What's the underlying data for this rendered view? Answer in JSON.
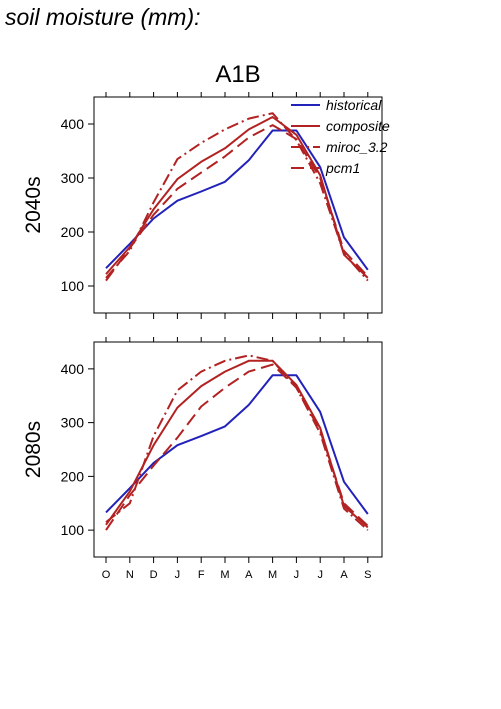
{
  "page": {
    "title": "soil moisture (mm):"
  },
  "chart_data": {
    "type": "line",
    "title": "A1B",
    "categories": [
      "O",
      "N",
      "D",
      "J",
      "F",
      "M",
      "A",
      "M",
      "J",
      "J",
      "A",
      "S"
    ],
    "ylim": [
      50,
      450
    ],
    "yticks": [
      100,
      200,
      300,
      400
    ],
    "grid": false,
    "legend": {
      "placement": "top-right",
      "entries": [
        "historical",
        "composite",
        "miroc_3.2",
        "pcm1"
      ]
    },
    "series_styles": [
      {
        "name": "historical",
        "color": "#2222bb",
        "dash": "solid"
      },
      {
        "name": "composite",
        "color": "#b22222",
        "dash": "solid"
      },
      {
        "name": "miroc_3.2",
        "color": "#b22222",
        "dash": "dashdot"
      },
      {
        "name": "pcm1",
        "color": "#b22222",
        "dash": "dashed"
      }
    ],
    "panels": [
      {
        "label": "2040s",
        "series": [
          {
            "name": "historical",
            "values": [
              133,
              178,
              225,
              258,
              275,
              293,
              333,
              388,
              388,
              320,
              190,
              130
            ]
          },
          {
            "name": "composite",
            "values": [
              122,
              172,
              242,
              298,
              330,
              355,
              390,
              413,
              380,
              305,
              158,
              115
            ]
          },
          {
            "name": "miroc_3.2",
            "values": [
              115,
              165,
              255,
              335,
              365,
              390,
              410,
              420,
              370,
              290,
              160,
              110
            ]
          },
          {
            "name": "pcm1",
            "values": [
              110,
              170,
              232,
              280,
              310,
              340,
              375,
              398,
              372,
              300,
              165,
              118
            ]
          }
        ]
      },
      {
        "label": "2080s",
        "series": [
          {
            "name": "historical",
            "values": [
              133,
              178,
              225,
              258,
              275,
              293,
              333,
              388,
              388,
              320,
              190,
              130
            ]
          },
          {
            "name": "composite",
            "values": [
              110,
              172,
              258,
              328,
              368,
              395,
              415,
              415,
              370,
              290,
              145,
              105
            ]
          },
          {
            "name": "miroc_3.2",
            "values": [
              115,
              150,
              275,
              360,
              395,
              415,
              425,
              415,
              365,
              280,
              140,
              100
            ]
          },
          {
            "name": "pcm1",
            "values": [
              100,
              165,
              220,
              272,
              330,
              365,
              395,
              408,
              365,
              285,
              150,
              108
            ]
          }
        ]
      }
    ]
  }
}
